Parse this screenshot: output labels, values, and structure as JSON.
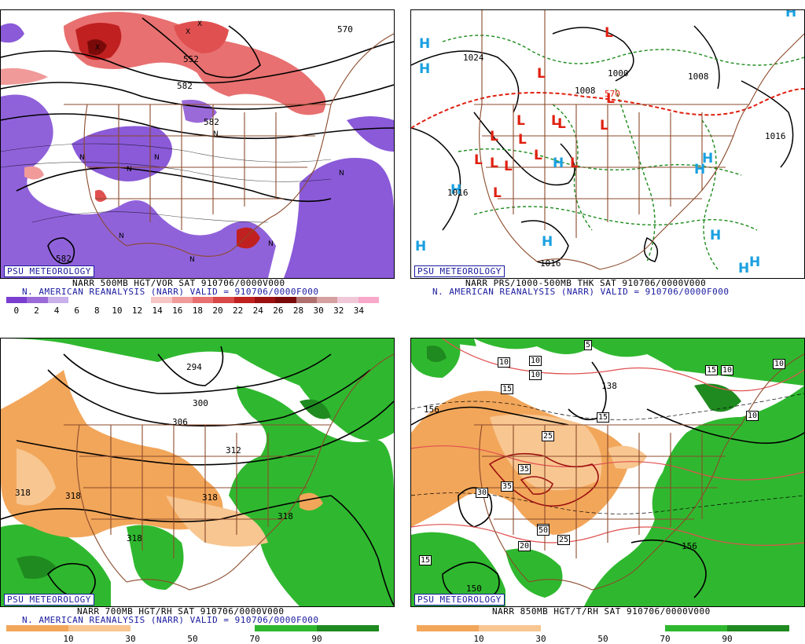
{
  "brand_label": "PSU METEOROLOGY",
  "panels": [
    {
      "id": "tl",
      "title": "NARR 500MB HGT/VOR SAT 910706/0000V000",
      "subtitle": "N. AMERICAN REANALYSIS (NARR) VALID = 910706/0000F000",
      "contour_labels": [
        "570",
        "552",
        "582",
        "582",
        "582"
      ],
      "colorbar": {
        "colors": [
          "#7a3fd0",
          "#9a6ad8",
          "#c8b0ea",
          "#ffffff",
          "#ffffff",
          "#ffffff",
          "#ffffff",
          "#f7c5c5",
          "#f09a9a",
          "#e87070",
          "#d84848",
          "#c02020",
          "#9c1010",
          "#7a0a0a",
          "#b07070",
          "#d6a0a0",
          "#f0c8d8",
          "#f8a8c8"
        ],
        "labels": [
          "0",
          "2",
          "4",
          "6",
          "8",
          "10",
          "12",
          "14",
          "16",
          "18",
          "20",
          "22",
          "24",
          "26",
          "28",
          "30",
          "32",
          "34"
        ]
      }
    },
    {
      "id": "tr",
      "title": "NARR PRS/1000-500MB THK SAT 910706/0000V000",
      "subtitle": "N. AMERICAN REANALYSIS (NARR) VALID = 910706/0000F000",
      "contour_labels": [
        "1024",
        "1000",
        "1008",
        "1008",
        "1016",
        "1016",
        "1016",
        "570"
      ]
    },
    {
      "id": "bl",
      "title": "NARR 700MB HGT/RH SAT 910706/0000V000",
      "subtitle": "N. AMERICAN REANALYSIS (NARR) VALID = 910706/0000F000",
      "contour_labels": [
        "294",
        "300",
        "306",
        "312",
        "318",
        "318",
        "318",
        "318",
        "318"
      ],
      "colorbar": {
        "colors": [
          "#f2a65a",
          "#f2a65a",
          "#f8c690",
          "#f8c690",
          "#ffffff",
          "#ffffff",
          "#ffffff",
          "#ffffff",
          "#2fb82f",
          "#2fb82f",
          "#1f8a1f",
          "#1f8a1f"
        ],
        "labels": [
          "10",
          "30",
          "50",
          "70",
          "90"
        ]
      }
    },
    {
      "id": "br",
      "title": "NARR 850MB HGT/T/RH SAT 910706/0000V000",
      "contour_labels": [
        "156",
        "156",
        "150",
        "138"
      ],
      "temp_labels": [
        "5",
        "10",
        "10",
        "10",
        "15",
        "15",
        "25",
        "25",
        "30",
        "30",
        "35",
        "35",
        "50",
        "20",
        "15",
        "10",
        "10",
        "10",
        "15"
      ],
      "colorbar": {
        "colors": [
          "#f2a65a",
          "#f2a65a",
          "#f8c690",
          "#f8c690",
          "#ffffff",
          "#ffffff",
          "#ffffff",
          "#ffffff",
          "#2fb82f",
          "#2fb82f",
          "#1f8a1f",
          "#1f8a1f"
        ],
        "labels": [
          "10",
          "30",
          "50",
          "70",
          "90"
        ]
      }
    }
  ],
  "pressure_centers": {
    "H": "H",
    "L": "L"
  },
  "colors": {
    "vort_low": "#8a5ad8",
    "vort_high": "#e05050",
    "rh_dry": "#f2a65a",
    "rh_moist": "#2fb82f",
    "state_lines": "#8b4a2b",
    "high_center": "#1aa0e0",
    "low_center": "#e02010",
    "thickness_570": "#e02010",
    "thickness_dashed": "#1a8a1a"
  }
}
